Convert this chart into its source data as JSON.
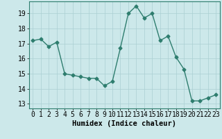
{
  "x": [
    0,
    1,
    2,
    3,
    4,
    5,
    6,
    7,
    8,
    9,
    10,
    11,
    12,
    13,
    14,
    15,
    16,
    17,
    18,
    19,
    20,
    21,
    22,
    23
  ],
  "y": [
    17.2,
    17.3,
    16.8,
    17.1,
    15.0,
    14.9,
    14.8,
    14.7,
    14.7,
    14.2,
    14.5,
    16.7,
    19.0,
    19.5,
    18.7,
    19.0,
    17.2,
    17.5,
    16.1,
    15.3,
    13.2,
    13.2,
    13.4,
    13.6
  ],
  "line_color": "#2e7d6e",
  "marker": "D",
  "marker_size": 2.5,
  "bg_color": "#cce8ea",
  "grid_color": "#aacfd2",
  "xlabel": "Humidex (Indice chaleur)",
  "xlim": [
    -0.5,
    23.5
  ],
  "ylim": [
    12.7,
    19.8
  ],
  "yticks": [
    13,
    14,
    15,
    16,
    17,
    18,
    19
  ],
  "xlabel_fontsize": 7.5,
  "tick_fontsize": 7,
  "line_width": 1.0
}
